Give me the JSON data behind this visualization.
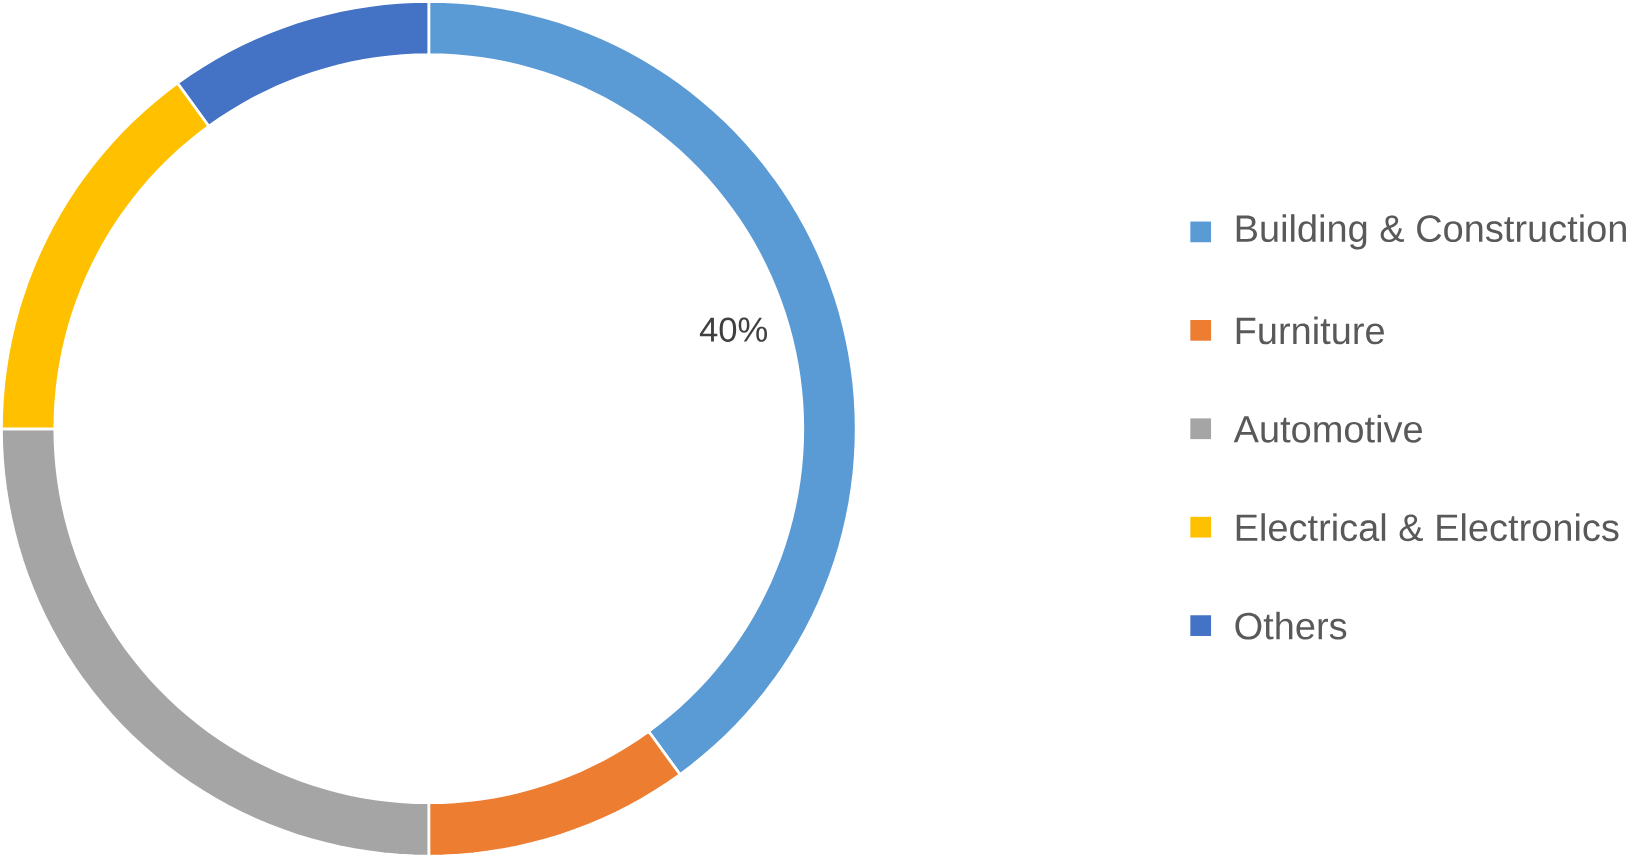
{
  "chart_data": {
    "type": "donut",
    "categories": [
      "Building & Construction",
      "Furniture",
      "Automotive",
      "Electrical & Electronics",
      "Others"
    ],
    "values": [
      40,
      10,
      25,
      15,
      10
    ],
    "colors": [
      "#5b9bd5",
      "#ed7d31",
      "#a5a5a5",
      "#ffc000",
      "#4472c4"
    ],
    "value_labels": [
      "40%",
      null,
      null,
      null,
      null
    ],
    "legend": "right"
  }
}
